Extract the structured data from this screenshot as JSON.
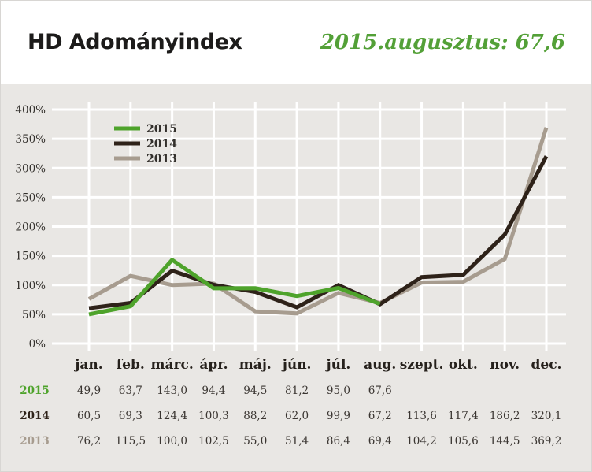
{
  "header": {
    "title": "HD Adományindex",
    "highlight": "2015.augusztus: 67,6"
  },
  "colors": {
    "green": "#4ea32b",
    "dark": "#2e2219",
    "taupe": "#a79c8f",
    "page_bg": "#e9e7e4",
    "header_bg": "#ffffff",
    "grid": "#ffffff",
    "accent_text": "#53a037",
    "value_text": "#3a3531"
  },
  "chart_data": {
    "type": "line",
    "title": "HD Adományindex",
    "categories": [
      "jan.",
      "feb.",
      "márc.",
      "ápr.",
      "máj.",
      "jún.",
      "júl.",
      "aug.",
      "szept.",
      "okt.",
      "nov.",
      "dec."
    ],
    "series": [
      {
        "name": "2015",
        "color_key": "green",
        "values": [
          49.9,
          63.7,
          143.0,
          94.4,
          94.5,
          81.2,
          95.0,
          67.6
        ]
      },
      {
        "name": "2014",
        "color_key": "dark",
        "values": [
          60.5,
          69.3,
          124.4,
          100.3,
          88.2,
          62.0,
          99.9,
          67.2,
          113.6,
          117.4,
          186.2,
          320.1
        ]
      },
      {
        "name": "2013",
        "color_key": "taupe",
        "values": [
          76.2,
          115.5,
          100.0,
          102.5,
          55.0,
          51.4,
          86.4,
          69.4,
          104.2,
          105.6,
          144.5,
          369.2
        ]
      }
    ],
    "ylabel_ticks": [
      "0%",
      "50%",
      "100%",
      "150%",
      "200%",
      "250%",
      "300%",
      "350%",
      "400%"
    ],
    "ylim": [
      0,
      400
    ],
    "grid": true,
    "legend_position": "top-left"
  },
  "table": {
    "rows": [
      {
        "label": "2015",
        "color_key": "green",
        "values": [
          "49,9",
          "63,7",
          "143,0",
          "94,4",
          "94,5",
          "81,2",
          "95,0",
          "67,6",
          "",
          "",
          "",
          ""
        ]
      },
      {
        "label": "2014",
        "color_key": "dark",
        "values": [
          "60,5",
          "69,3",
          "124,4",
          "100,3",
          "88,2",
          "62,0",
          "99,9",
          "67,2",
          "113,6",
          "117,4",
          "186,2",
          "320,1"
        ]
      },
      {
        "label": "2013",
        "color_key": "taupe",
        "values": [
          "76,2",
          "115,5",
          "100,0",
          "102,5",
          "55,0",
          "51,4",
          "86,4",
          "69,4",
          "104,2",
          "105,6",
          "144,5",
          "369,2"
        ]
      }
    ]
  }
}
